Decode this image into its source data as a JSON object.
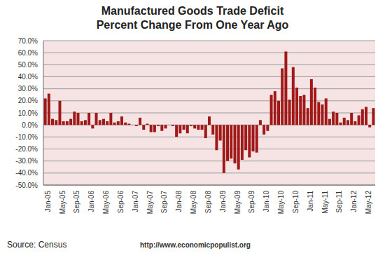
{
  "chart_data": {
    "type": "bar",
    "title": "Manufactured Goods Trade Deficit",
    "subtitle": "Percent Change From One Year Ago",
    "annotations": [
      "Source: Census",
      "http://www.economicpopulist.org"
    ],
    "categories": [
      "Jan-05",
      null,
      null,
      null,
      "May-05",
      null,
      null,
      null,
      "Sep-05",
      null,
      null,
      null,
      "Jan-06",
      null,
      null,
      null,
      "May-06",
      null,
      null,
      null,
      "Sep-06",
      null,
      null,
      null,
      "Jan-07",
      null,
      null,
      null,
      "May-07",
      null,
      null,
      null,
      "Sep-07",
      null,
      null,
      null,
      "Jan-08",
      null,
      null,
      null,
      "May-08",
      null,
      null,
      null,
      "Sep-08",
      null,
      null,
      null,
      "Jan-09",
      null,
      null,
      null,
      "May-09",
      null,
      null,
      null,
      "Sep-09",
      null,
      null,
      null,
      "Jan-10",
      null,
      null,
      null,
      "May-10",
      null,
      null,
      null,
      "Sep-10",
      null,
      null,
      null,
      "Jan-11",
      null,
      null,
      null,
      "May-11",
      null,
      null,
      null,
      "Sep-11",
      null,
      null,
      null,
      "Jan-12",
      null,
      null,
      null,
      "May-12",
      null,
      null
    ],
    "values": [
      22,
      26,
      5,
      4,
      20,
      3,
      3,
      5,
      11,
      10,
      3,
      4,
      10,
      -3,
      10,
      4,
      5,
      3,
      10,
      2,
      3,
      7,
      2,
      1,
      0,
      -1,
      6,
      -4,
      1,
      -6,
      -6,
      -1,
      -5,
      -3,
      0,
      -1,
      -10,
      -7,
      -4,
      -7,
      -1,
      -3,
      -4,
      -4,
      -11,
      7,
      -8,
      -21,
      -13,
      -40,
      -30,
      -28,
      -32,
      -37,
      -29,
      -21,
      -27,
      -22,
      -23,
      4,
      -8,
      -5,
      25,
      28,
      20,
      47,
      61,
      21,
      48,
      31,
      24,
      25,
      14,
      38,
      31,
      19,
      17,
      22,
      5,
      11,
      10,
      2,
      6,
      4,
      10,
      3,
      8,
      13,
      15,
      -2,
      14
    ],
    "color": "#a01818",
    "ylim": [
      -50,
      70
    ],
    "yticks": [
      {
        "value": -50,
        "label": "-50.0%"
      },
      {
        "value": -40,
        "label": "-40.0%"
      },
      {
        "value": -30,
        "label": "-30.0%"
      },
      {
        "value": -20,
        "label": "-20.0%"
      },
      {
        "value": -10,
        "label": "-10.0%"
      },
      {
        "value": 0,
        "label": "0.0%"
      },
      {
        "value": 10,
        "label": "10.0%"
      },
      {
        "value": 20,
        "label": "20.0%"
      },
      {
        "value": 30,
        "label": "30.0%"
      },
      {
        "value": 40,
        "label": "40.0%"
      },
      {
        "value": 50,
        "label": "50.0%"
      },
      {
        "value": 60,
        "label": "60.0%"
      },
      {
        "value": 70,
        "label": "70.0%"
      }
    ],
    "grid": true
  }
}
